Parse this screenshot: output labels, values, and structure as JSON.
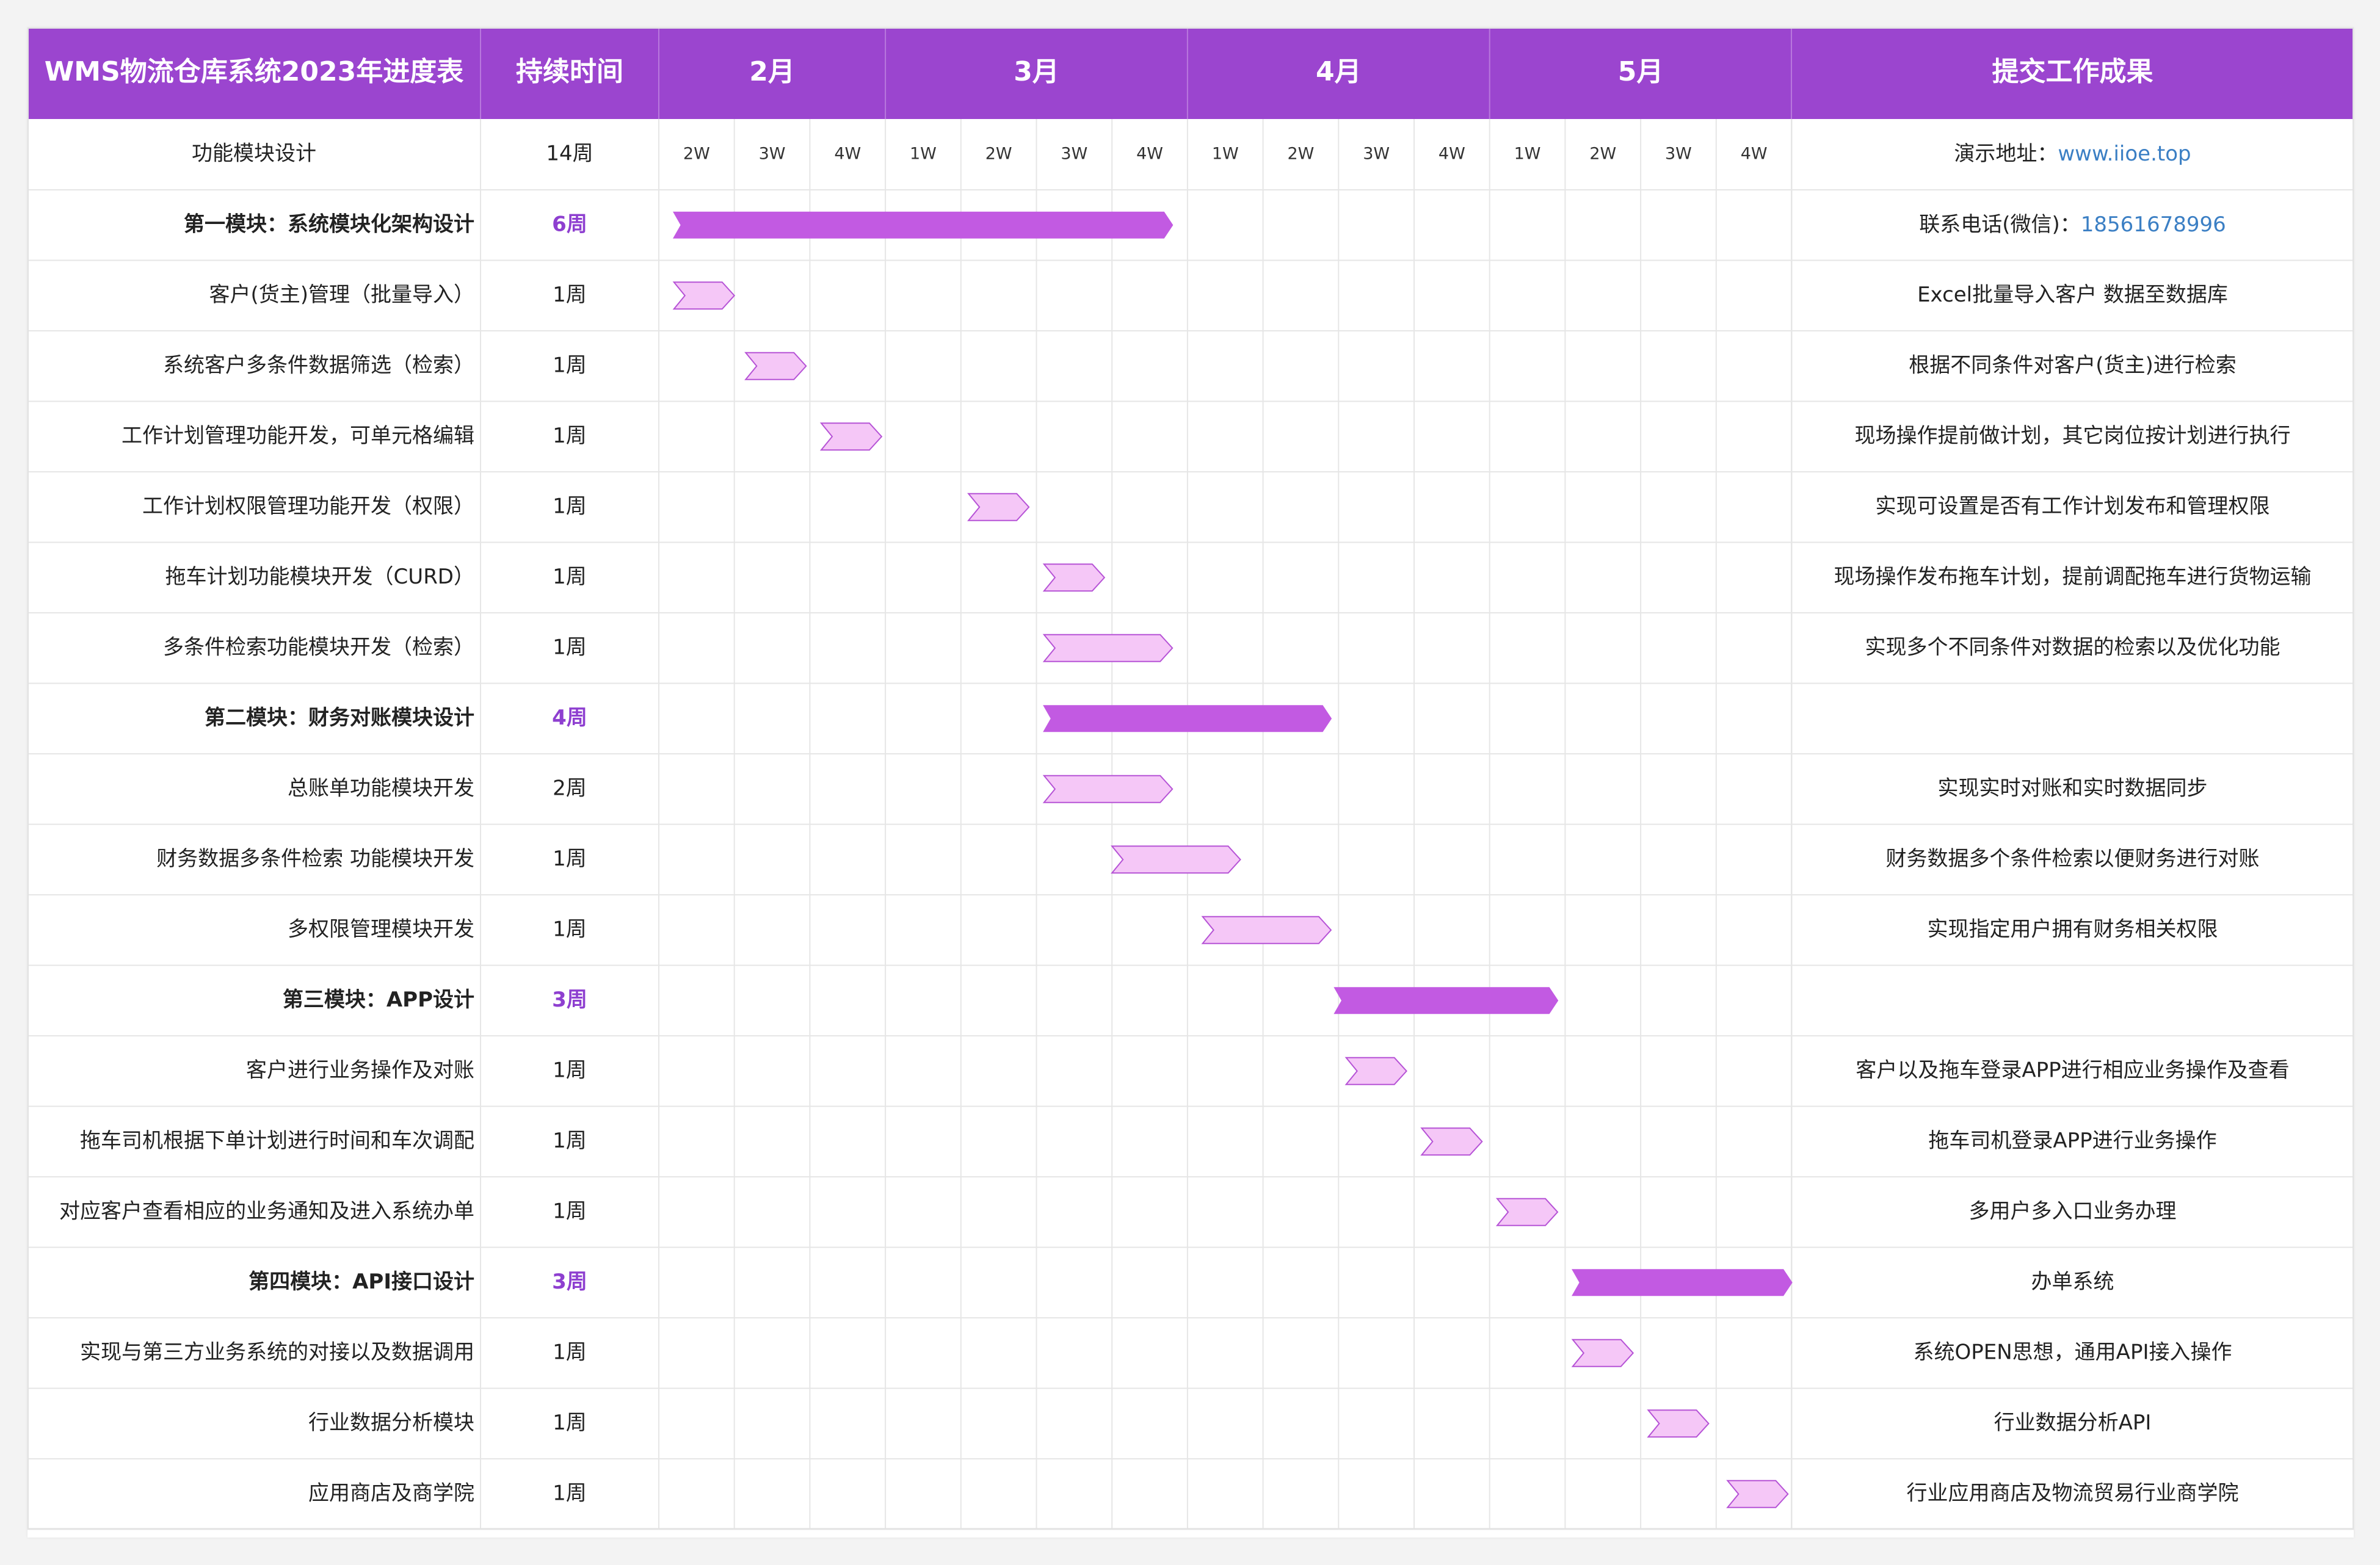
{
  "chart_data": {
    "type": "gantt",
    "header": {
      "title": "WMS物流仓库系统2023年进度表",
      "duration": "持续时间",
      "deliverable": "提交工作成果"
    },
    "months": [
      {
        "label": "2月",
        "weeks": [
          "2W",
          "3W",
          "4W"
        ]
      },
      {
        "label": "3月",
        "weeks": [
          "1W",
          "2W",
          "3W",
          "4W"
        ]
      },
      {
        "label": "4月",
        "weeks": [
          "1W",
          "2W",
          "3W",
          "4W"
        ]
      },
      {
        "label": "5月",
        "weeks": [
          "1W",
          "2W",
          "3W",
          "4W"
        ]
      }
    ],
    "subheader": {
      "name": "功能模块设计",
      "duration": "14周",
      "deliverable_label": "演示地址：",
      "deliverable_value": "www.iioe.top"
    },
    "tasks": [
      {
        "name": "第一模块：系统模块化架构设计",
        "duration": "6周",
        "group": true,
        "start": 0.2,
        "end": 6.8,
        "result_label": "联系电话(微信)：",
        "result_value": "18561678996"
      },
      {
        "name": "客户(货主)管理（批量导入）",
        "duration": "1周",
        "group": false,
        "start": 0.2,
        "end": 1.0,
        "result": "Excel批量导入客户 数据至数据库"
      },
      {
        "name": "系统客户多条件数据筛选（检索）",
        "duration": "1周",
        "group": false,
        "start": 1.15,
        "end": 1.95,
        "result": "根据不同条件对客户(货主)进行检索"
      },
      {
        "name": "工作计划管理功能开发，可单元格编辑",
        "duration": "1周",
        "group": false,
        "start": 2.15,
        "end": 2.95,
        "result": "现场操作提前做计划，其它岗位按计划进行执行"
      },
      {
        "name": "工作计划权限管理功能开发（权限）",
        "duration": "1周",
        "group": false,
        "start": 4.1,
        "end": 4.9,
        "result": "实现可设置是否有工作计划发布和管理权限"
      },
      {
        "name": "拖车计划功能模块开发（CURD）",
        "duration": "1周",
        "group": false,
        "start": 5.1,
        "end": 5.9,
        "result": "现场操作发布拖车计划，提前调配拖车进行货物运输"
      },
      {
        "name": "多条件检索功能模块开发（检索）",
        "duration": "1周",
        "group": false,
        "start": 5.1,
        "end": 6.8,
        "result": "实现多个不同条件对数据的检索以及优化功能"
      },
      {
        "name": "第二模块：财务对账模块设计",
        "duration": "4周",
        "group": true,
        "start": 5.1,
        "end": 8.9,
        "result": ""
      },
      {
        "name": "总账单功能模块开发",
        "duration": "2周",
        "group": false,
        "start": 5.1,
        "end": 6.8,
        "result": "实现实时对账和实时数据同步"
      },
      {
        "name": "财务数据多条件检索 功能模块开发",
        "duration": "1周",
        "group": false,
        "start": 6.0,
        "end": 7.7,
        "result": "财务数据多个条件检索以便财务进行对账"
      },
      {
        "name": "多权限管理模块开发",
        "duration": "1周",
        "group": false,
        "start": 7.2,
        "end": 8.9,
        "result": "实现指定用户拥有财务相关权限"
      },
      {
        "name": "第三模块：APP设计",
        "duration": "3周",
        "group": true,
        "start": 8.95,
        "end": 11.9,
        "result": ""
      },
      {
        "name": "客户进行业务操作及对账",
        "duration": "1周",
        "group": false,
        "start": 9.1,
        "end": 9.9,
        "result": "客户以及拖车登录APP进行相应业务操作及查看"
      },
      {
        "name": "拖车司机根据下单计划进行时间和车次调配",
        "duration": "1周",
        "group": false,
        "start": 10.1,
        "end": 10.9,
        "result": "拖车司机登录APP进行业务操作"
      },
      {
        "name": "对应客户查看相应的业务通知及进入系统办单",
        "duration": "1周",
        "group": false,
        "start": 11.1,
        "end": 11.9,
        "result": "多用户多入口业务办理"
      },
      {
        "name": "第四模块：API接口设计",
        "duration": "3周",
        "group": true,
        "start": 12.1,
        "end": 15.0,
        "result": "办单系统"
      },
      {
        "name": "实现与第三方业务系统的对接以及数据调用",
        "duration": "1周",
        "group": false,
        "start": 12.1,
        "end": 12.9,
        "result": "系统OPEN思想，通用API接入操作"
      },
      {
        "name": "行业数据分析模块",
        "duration": "1周",
        "group": false,
        "start": 13.1,
        "end": 13.9,
        "result": "行业数据分析API"
      },
      {
        "name": "应用商店及商学院",
        "duration": "1周",
        "group": false,
        "start": 14.15,
        "end": 14.95,
        "result": "行业应用商店及物流贸易行业商学院"
      }
    ],
    "colors": {
      "header": "#9b45cf",
      "group_bar": "#c25ae2",
      "task_fill": "#f5c7f7",
      "task_stroke": "#b653d6",
      "group_text": "#8e3fd0",
      "link": "#3b7fc4"
    }
  }
}
